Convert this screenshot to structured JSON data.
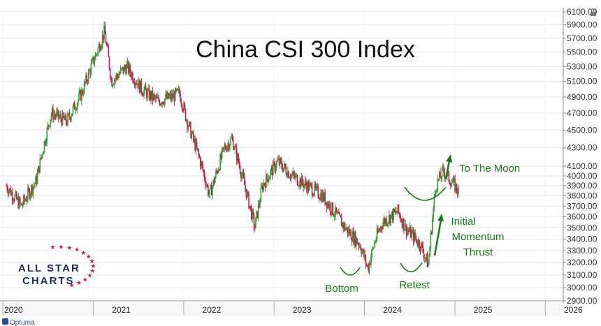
{
  "chart_data": {
    "type": "candlestick",
    "title": "China CSI 300 Index",
    "y_ticks": [
      2900,
      3000,
      3100,
      3200,
      3300,
      3400,
      3500,
      3600,
      3700,
      3800,
      3900,
      4000,
      4100,
      4300,
      4500,
      4700,
      4900,
      5100,
      5300,
      5500,
      5700,
      5900,
      6100
    ],
    "y_tick_labels": [
      "2900.00",
      "3000.00",
      "3100.00",
      "3200.00",
      "3300.00",
      "3400.00",
      "3500.00",
      "3600.00",
      "3700.00",
      "3800.00",
      "3900.00",
      "4000.00",
      "4100.00",
      "4300.00",
      "4500.00",
      "4700.00",
      "4900.00",
      "5100.00",
      "5300.00",
      "5500.00",
      "5700.00",
      "5900.00",
      "6100.00"
    ],
    "x_labels": [
      "2020",
      "2021",
      "2022",
      "2023",
      "2024",
      "2025",
      "2026"
    ],
    "scale": "log",
    "ylim": [
      2900,
      6100
    ],
    "series": [
      {
        "date": "2020-01",
        "value": 3900
      },
      {
        "date": "2020-03",
        "value": 3700
      },
      {
        "date": "2020-05",
        "value": 3950
      },
      {
        "date": "2020-07",
        "value": 4700
      },
      {
        "date": "2020-09",
        "value": 4600
      },
      {
        "date": "2020-11",
        "value": 4950
      },
      {
        "date": "2021-01",
        "value": 5500
      },
      {
        "date": "2021-02",
        "value": 5800
      },
      {
        "date": "2021-03",
        "value": 5100
      },
      {
        "date": "2021-05",
        "value": 5300
      },
      {
        "date": "2021-07",
        "value": 5000
      },
      {
        "date": "2021-09",
        "value": 4850
      },
      {
        "date": "2021-11",
        "value": 4900
      },
      {
        "date": "2021-12",
        "value": 4950
      },
      {
        "date": "2022-01",
        "value": 4600
      },
      {
        "date": "2022-03",
        "value": 4100
      },
      {
        "date": "2022-04",
        "value": 3800
      },
      {
        "date": "2022-06",
        "value": 4300
      },
      {
        "date": "2022-07",
        "value": 4400
      },
      {
        "date": "2022-08",
        "value": 4100
      },
      {
        "date": "2022-10",
        "value": 3500
      },
      {
        "date": "2022-11",
        "value": 3900
      },
      {
        "date": "2023-01",
        "value": 4150
      },
      {
        "date": "2023-03",
        "value": 4000
      },
      {
        "date": "2023-05",
        "value": 3900
      },
      {
        "date": "2023-07",
        "value": 3800
      },
      {
        "date": "2023-08",
        "value": 3700
      },
      {
        "date": "2023-10",
        "value": 3500
      },
      {
        "date": "2023-12",
        "value": 3350
      },
      {
        "date": "2024-01",
        "value": 3150
      },
      {
        "date": "2024-02",
        "value": 3400
      },
      {
        "date": "2024-03",
        "value": 3550
      },
      {
        "date": "2024-05",
        "value": 3650
      },
      {
        "date": "2024-06",
        "value": 3500
      },
      {
        "date": "2024-08",
        "value": 3350
      },
      {
        "date": "2024-09",
        "value": 3180
      },
      {
        "date": "2024-10",
        "value": 3900
      },
      {
        "date": "2024-11",
        "value": 4050
      },
      {
        "date": "2024-12",
        "value": 3950
      },
      {
        "date": "2025-01",
        "value": 3850
      }
    ],
    "annotations": [
      {
        "text": "To The Moon"
      },
      {
        "text": "Initial"
      },
      {
        "text": "Momentum"
      },
      {
        "text": "Thrust"
      },
      {
        "text": "Bottom"
      },
      {
        "text": "Retest"
      }
    ],
    "colors": {
      "up": "#2e9e2e",
      "down": "#c81e4f",
      "annotation": "#1a7a1a",
      "grid": "#e6e6e6"
    }
  },
  "logo": {
    "line1": "ALL STAR",
    "line2": "CHARTS"
  },
  "footer": {
    "brand": "Optuma"
  }
}
